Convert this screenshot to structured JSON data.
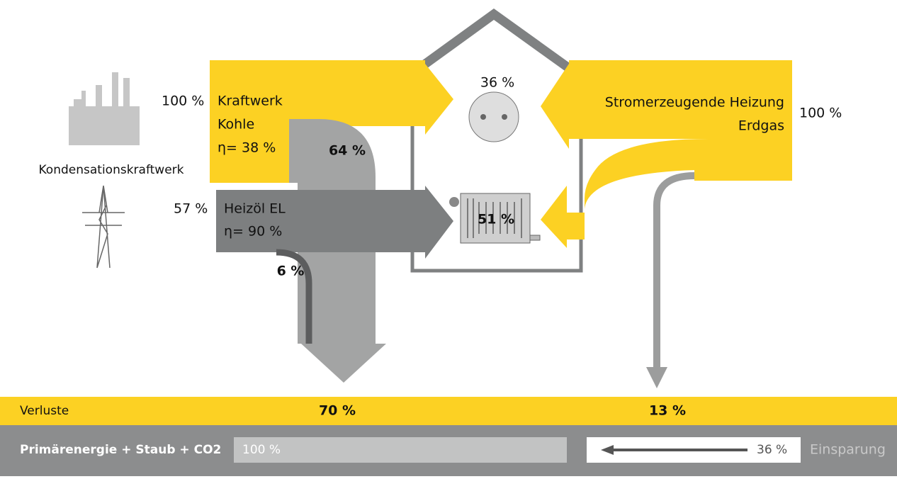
{
  "source_left": {
    "share": "100 %",
    "name_line1": "Kraftwerk",
    "name_line2": "Kohle",
    "efficiency": "η= 38 %",
    "caption": "Kondensationskraftwerk"
  },
  "loss_left": "64 %",
  "source_oil": {
    "share": "57 %",
    "name": "Heizöl EL",
    "efficiency": "η= 90 %"
  },
  "loss_oil": "6 %",
  "house": {
    "electricity": "36 %",
    "heat": "51 %"
  },
  "source_right": {
    "share": "100 %",
    "name_line1": "Stromerzeugende Heizung",
    "name_line2": "Erdgas"
  },
  "footer": {
    "losses_label": "Verluste",
    "losses_left": "70 %",
    "losses_right": "13 %",
    "primary_label": "Primärenergie + Staub + CO2",
    "primary_value": "100 %",
    "saving_value": "36 %",
    "saving_label": "Einsparung"
  }
}
